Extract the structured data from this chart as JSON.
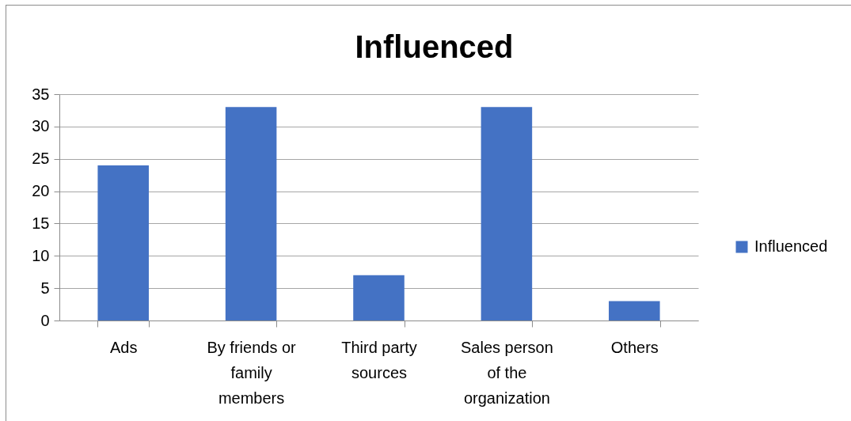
{
  "chart_data": {
    "type": "bar",
    "title": "Influenced",
    "categories": [
      "Ads",
      "By friends or family members",
      "Third party sources",
      "Sales person of the organization",
      "Others"
    ],
    "series": [
      {
        "name": "Influenced",
        "color": "#4472c4",
        "values": [
          24,
          33,
          7,
          33,
          3
        ]
      }
    ],
    "ylim": [
      0,
      35
    ],
    "yticks": [
      0,
      5,
      10,
      15,
      20,
      25,
      30,
      35
    ],
    "grid": "y",
    "legend": "right"
  }
}
